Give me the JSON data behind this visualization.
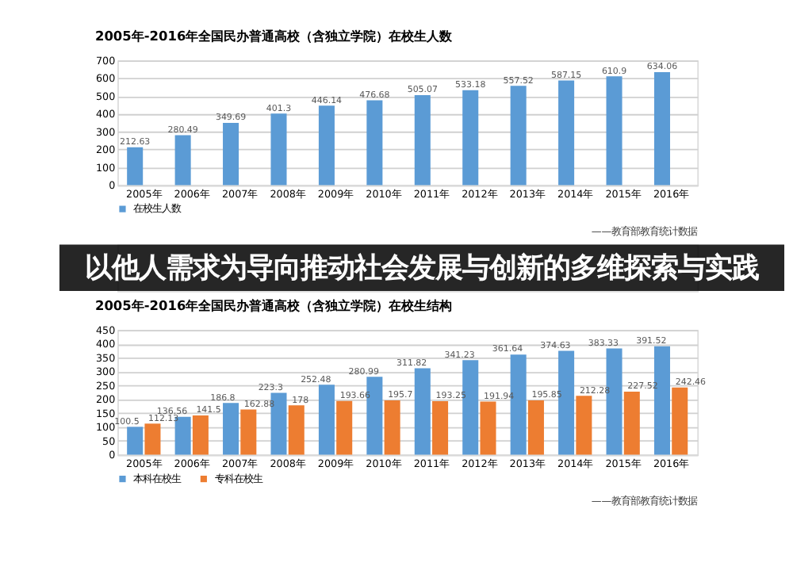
{
  "chart_data": [
    {
      "type": "bar",
      "title": "2005年-2016年全国民办普通高校（含独立学院）在校生人数",
      "categories": [
        "2005年",
        "2006年",
        "2007年",
        "2008年",
        "2009年",
        "2010年",
        "2011年",
        "2012年",
        "2013年",
        "2014年",
        "2015年",
        "2016年"
      ],
      "series": [
        {
          "name": "在校生人数",
          "color": "#5b9bd5",
          "values": [
            212.63,
            280.49,
            349.69,
            401.3,
            446.14,
            476.68,
            505.07,
            533.18,
            557.52,
            587.15,
            610.9,
            634.06
          ]
        }
      ],
      "ylim": [
        0,
        700
      ],
      "yticks": [
        0,
        100,
        200,
        300,
        400,
        500,
        600,
        700
      ],
      "grid": "y",
      "data_labels": true,
      "legend": "bottom",
      "annotations": [
        "——教育部教育统计数据"
      ]
    },
    {
      "type": "other",
      "title": "以他人需求为导向推动社会发展与创新的多维探索与实践"
    },
    {
      "type": "bar",
      "title": "2005年-2016年全国民办普通高校（含独立学院）在校生结构",
      "categories": [
        "2005年",
        "2006年",
        "2007年",
        "2008年",
        "2009年",
        "2010年",
        "2011年",
        "2012年",
        "2013年",
        "2014年",
        "2015年",
        "2016年"
      ],
      "series": [
        {
          "name": "本科在校生",
          "color": "#5b9bd5",
          "values": [
            100.5,
            136.56,
            186.8,
            223.3,
            252.48,
            280.99,
            311.82,
            341.23,
            361.64,
            374.63,
            383.33,
            391.52
          ]
        },
        {
          "name": "专科在校生",
          "color": "#ed7d31",
          "values": [
            112.13,
            141.5,
            162.88,
            178,
            193.66,
            195.7,
            193.25,
            191.94,
            195.85,
            212.28,
            227.52,
            242.46
          ]
        }
      ],
      "ylim": [
        0,
        450
      ],
      "yticks": [
        0,
        50,
        100,
        150,
        200,
        250,
        300,
        350,
        400,
        450
      ],
      "grid": "y",
      "data_labels": true,
      "legend": "bottom",
      "annotations": [
        "——教育部教育统计数据"
      ]
    }
  ]
}
